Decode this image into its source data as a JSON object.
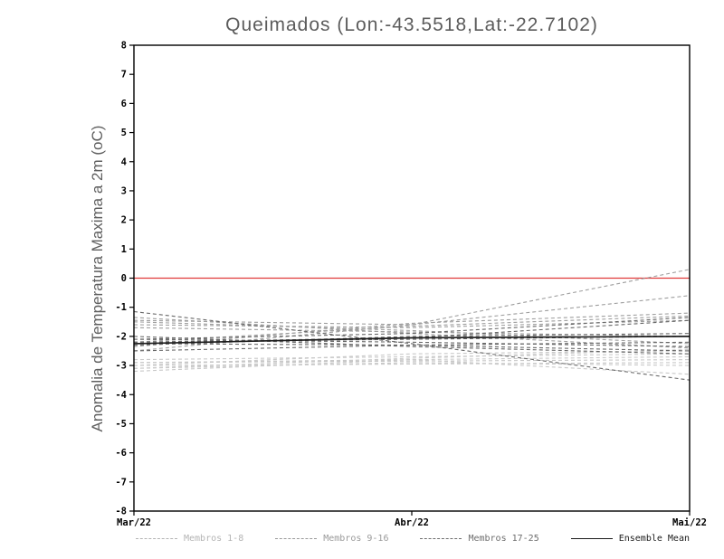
{
  "chart_data": {
    "type": "line",
    "title": "Queimados (Lon:-43.5518,Lat:-22.7102)",
    "ylabel": "Anomalia de Temperatura Maxima a 2m (oC)",
    "xlabel": "",
    "categories": [
      "Mar/22",
      "Abr/22",
      "Mai/22"
    ],
    "ylim": [
      -8,
      8
    ],
    "ytick_step": 1,
    "grid": false,
    "zero_line": {
      "y": 0,
      "color": "#e03a3a"
    },
    "frame_color": "#000000",
    "tick_label_color": "#000000",
    "series_groups": [
      {
        "name": "Membros 1-8",
        "color": "#c8c8c8",
        "style": "dashed",
        "series": [
          [
            -2.9,
            -2.85,
            -2.8
          ],
          [
            -3.0,
            -2.95,
            -2.9
          ],
          [
            -3.1,
            -2.9,
            -3.0
          ],
          [
            -3.2,
            -2.8,
            -2.7
          ],
          [
            -2.8,
            -2.7,
            -2.6
          ],
          [
            -3.0,
            -2.6,
            -2.5
          ],
          [
            -2.9,
            -2.8,
            -3.3
          ],
          [
            -3.1,
            -2.75,
            -2.45
          ]
        ]
      },
      {
        "name": "Membros 9-16",
        "color": "#9e9e9e",
        "style": "dashed",
        "series": [
          [
            -1.35,
            -1.9,
            -2.4
          ],
          [
            -1.5,
            -1.8,
            -2.25
          ],
          [
            -1.6,
            -1.7,
            -1.45
          ],
          [
            -1.45,
            -1.6,
            -0.6
          ],
          [
            -2.5,
            -1.6,
            0.3
          ],
          [
            -2.2,
            -1.65,
            -1.3
          ],
          [
            -2.35,
            -1.55,
            -1.2
          ],
          [
            -1.7,
            -1.85,
            -2.0
          ]
        ]
      },
      {
        "name": "Membros 17-25",
        "color": "#686868",
        "style": "dashed",
        "series": [
          [
            -2.1,
            -2.2,
            -2.35
          ],
          [
            -2.2,
            -2.1,
            -2.0
          ],
          [
            -2.3,
            -2.0,
            -1.9
          ],
          [
            -2.25,
            -2.3,
            -2.5
          ],
          [
            -1.15,
            -2.25,
            -3.5
          ],
          [
            -2.1,
            -1.9,
            -1.35
          ],
          [
            -2.0,
            -2.35,
            -2.6
          ],
          [
            -2.5,
            -2.3,
            -2.2
          ],
          [
            -2.2,
            -2.05,
            -1.45
          ]
        ]
      }
    ],
    "mean_series": {
      "name": "Ensemble Mean",
      "color": "#1c1c1c",
      "style": "solid",
      "values": [
        -2.25,
        -2.05,
        -2.0
      ]
    },
    "legend": [
      {
        "label": "Membros 1-8",
        "color": "#b4b4b4",
        "style": "dashed"
      },
      {
        "label": "Membros 9-16",
        "color": "#9a9a9a",
        "style": "dashed"
      },
      {
        "label": "Membros 17-25",
        "color": "#6e6e6e",
        "style": "dashed"
      },
      {
        "label": "Ensemble Mean",
        "color": "#1c1c1c",
        "style": "solid"
      }
    ],
    "legend_position": "bottom"
  }
}
